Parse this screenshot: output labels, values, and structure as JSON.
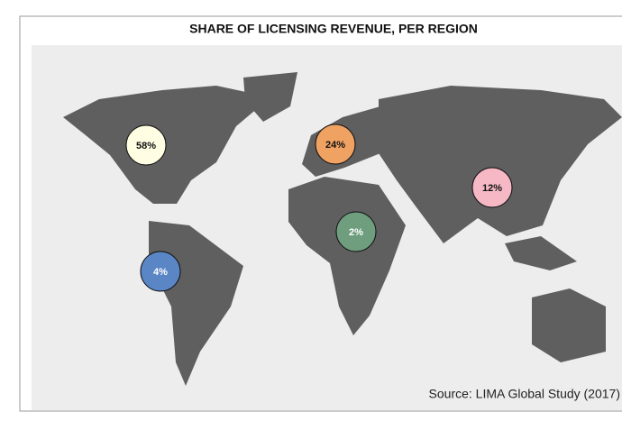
{
  "chart_data": {
    "type": "bubble-map",
    "title": "SHARE OF LICENSING REVENUE, PER REGION",
    "values": [
      58,
      24,
      12,
      2,
      4
    ],
    "value_labels": [
      "58%",
      "24%",
      "12%",
      "2%",
      "4%"
    ],
    "colors": [
      "#fffde2",
      "#f0a263",
      "#f5b8c4",
      "#6f9e7f",
      "#5b86c6"
    ],
    "label_colors": [
      "#111111",
      "#111111",
      "#111111",
      "#ffffff",
      "#ffffff"
    ],
    "source": "Source: LIMA Global Study (2017)"
  }
}
